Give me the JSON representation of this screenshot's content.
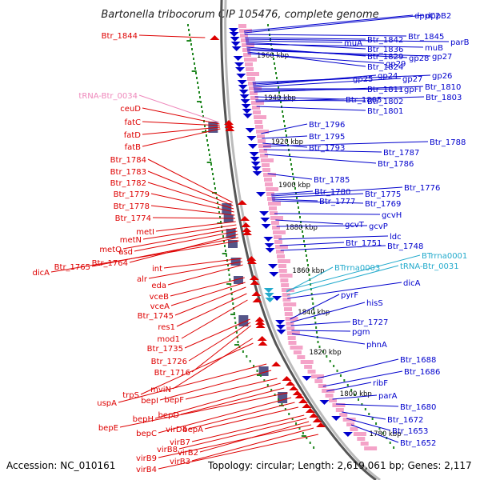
{
  "title": "Bartonella tribocorum CIP 105476, complete genome",
  "footer": {
    "accession": "Accession: NC_010161",
    "summary": "Topology: circular; Length: 2,619,061 bp; Genes: 2,117"
  },
  "colors": {
    "forward": "#0000cc",
    "reverse": "#dd0000",
    "trna": "#ee88bb",
    "rrna": "#22aacc",
    "backbone": "#999999",
    "ticks": "#228822"
  },
  "ruler_labels": [
    "1960 kbp",
    "1940 kbp",
    "1920 kbp",
    "1900 kbp",
    "1880 kbp",
    "1860 kbp",
    "1840 kbp",
    "1820 kbp",
    "1800 kbp",
    "1780 kbp"
  ],
  "left_labels": [
    "Btr_1844",
    "tRNA-Btr_0034",
    "ceuD",
    "fatC",
    "fatD",
    "fatB",
    "Btr_1784",
    "Btr_1783",
    "Btr_1782",
    "Btr_1779",
    "Btr_1778",
    "Btr_1774",
    "metI",
    "metN",
    "metQ",
    "asd",
    "Btr_1764",
    "Btr_1765",
    "dicA",
    "int",
    "alr",
    "eda",
    "vceB",
    "vceA",
    "Btr_1745",
    "res1",
    "mod1",
    "Btr_1735",
    "Btr_1726",
    "Btr_1716",
    "mviN",
    "trpS",
    "uspA",
    "bepI",
    "bepF",
    "bepH",
    "bepD",
    "bepE",
    "bepC",
    "virD4",
    "bepA",
    "virB7",
    "virB8",
    "virB2",
    "virB9",
    "virB3",
    "virB4"
  ],
  "right_labels": [
    "dppC2",
    "dppB2",
    "Btr_1845",
    "Btr_1842",
    "parB",
    "muA",
    "Btr_1836",
    "muB",
    "Btr_1829",
    "gp28",
    "gp27",
    "Btr_1824",
    "gp29",
    "gp26",
    "gp25",
    "gp24",
    "gp27",
    "Btr_1811",
    "gpFI",
    "Btr_1810",
    "Btr_1805",
    "Btr_1802",
    "Btr_1803",
    "Btr_1801",
    "Btr_1796",
    "Btr_1795",
    "Btr_1793",
    "Btr_1788",
    "Btr_1787",
    "Btr_1786",
    "Btr_1785",
    "Btr_1780",
    "Btr_1776",
    "Btr_1775",
    "Btr_1777",
    "Btr_1769",
    "gcvH",
    "gcvT",
    "gcvP",
    "ldc",
    "Btr_1751",
    "Btr_1748",
    "BTrrna0001",
    "BTrrna0003",
    "tRNA-Btr_0031",
    "dicA",
    "pyrF",
    "hisS",
    "Btr_1727",
    "pgm",
    "phnA",
    "Btr_1688",
    "Btr_1686",
    "ribF",
    "parA",
    "Btr_1680",
    "Btr_1672",
    "Btr_1653",
    "Btr_1652"
  ]
}
